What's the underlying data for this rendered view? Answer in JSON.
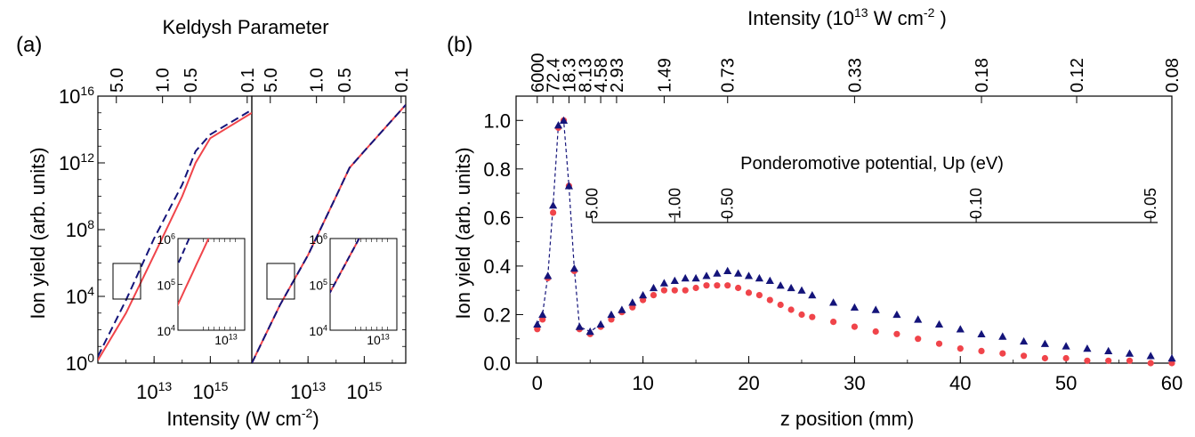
{
  "panel_a": {
    "label": "(a)",
    "top_title": "Keldysh Parameter",
    "top_ticks": [
      "5.0",
      "1.0",
      "0.5",
      "0.1"
    ],
    "ylabel": "Ion yield (arb. units)",
    "xlabel_prefix": "Intensity (",
    "xlabel_unit": "W cm",
    "xlabel_exp": "-2",
    "xlabel_suffix": ")",
    "x_tick_base": "10",
    "x_tick_exps": [
      "13",
      "15"
    ],
    "y_tick_base": "10",
    "y_tick_exps": [
      "16",
      "12",
      "8",
      "4",
      "0"
    ],
    "inset_y_exps": [
      "6",
      "5",
      "4"
    ],
    "inset_x_exp": "13"
  },
  "panel_b": {
    "label": "(b)",
    "top_title_prefix": "Intensity (10",
    "top_title_exp": "13",
    "top_title_unit": " W cm",
    "top_title_unit_exp": "-2",
    "top_title_suffix": " )",
    "top_ticks": [
      "6000",
      "72.4",
      "18.3",
      "8.13",
      "4.58",
      "2.93",
      "1.49",
      "0.73",
      "0.33",
      "0.18",
      "0.12",
      "0.08"
    ],
    "inner_title": "Ponderomotive potential, Up (eV)",
    "inner_ticks": [
      "5.00",
      "1.00",
      "0.50",
      "0.10",
      "0.05"
    ],
    "xlabel": "z position (mm)",
    "ylabel": "Ion yield (arb. units)",
    "x_ticks": [
      "0",
      "10",
      "20",
      "30",
      "40",
      "50",
      "60"
    ],
    "y_ticks": [
      "0.0",
      "0.2",
      "0.4",
      "0.6",
      "0.8",
      "1.0"
    ]
  },
  "colors": {
    "red": "#f0444a",
    "blue": "#14147a"
  },
  "chart_data": [
    {
      "type": "line",
      "panel": "(a) left",
      "xscale": "log",
      "yscale": "log",
      "xlim": [
        100000000000.0,
        3e+16
      ],
      "ylim": [
        1,
        1e+16
      ],
      "series": [
        {
          "color": "red",
          "style": "solid",
          "x": [
            100000000000.0,
            1000000000000.0,
            10000000000000.0,
            100000000000000.0,
            300000000000000.0,
            1000000000000000.0,
            3e+16
          ],
          "y": [
            1.5,
            1000.0,
            3000000.0,
            10000000000.0,
            1000000000000.0,
            30000000000000.0,
            1000000000000000.0
          ]
        },
        {
          "color": "blue",
          "style": "dashed",
          "x": [
            100000000000.0,
            1000000000000.0,
            10000000000000.0,
            100000000000000.0,
            300000000000000.0,
            1000000000000000.0,
            3e+16
          ],
          "y": [
            2.5,
            6000.0,
            30000000.0,
            50000000000.0,
            5000000000000.0,
            50000000000000.0,
            1500000000000000.0
          ]
        }
      ]
    },
    {
      "type": "line",
      "panel": "(a) right",
      "xscale": "log",
      "yscale": "log",
      "xlim": [
        100000000000.0,
        3e+16
      ],
      "ylim": [
        1,
        1e+16
      ],
      "series": [
        {
          "color": "red",
          "style": "solid",
          "x": [
            100000000000.0,
            1000000000000.0,
            10000000000000.0,
            100000000000000.0,
            300000000000000.0,
            1000000000000000.0,
            3e+16
          ],
          "y": [
            1,
            3000.0,
            3000000.0,
            10000000000.0,
            500000000000.0,
            5000000000000.0,
            3000000000000000.0
          ]
        },
        {
          "color": "blue",
          "style": "dashed",
          "x": [
            100000000000.0,
            1000000000000.0,
            10000000000000.0,
            100000000000000.0,
            300000000000000.0,
            1000000000000000.0,
            3e+16
          ],
          "y": [
            1,
            3000.0,
            3000000.0,
            10000000000.0,
            500000000000.0,
            5000000000000.0,
            3000000000000000.0
          ]
        }
      ]
    },
    {
      "type": "scatter",
      "panel": "(b)",
      "xlim": [
        -2,
        60
      ],
      "ylim": [
        0,
        1.1
      ],
      "series": [
        {
          "color": "blue",
          "marker": "triangle",
          "x": [
            0,
            0.5,
            1,
            1.5,
            2,
            2.5,
            3,
            3.5,
            4,
            5,
            6,
            7,
            8,
            9,
            10,
            11,
            12,
            13,
            14,
            15,
            16,
            17,
            18,
            19,
            20,
            21,
            22,
            23,
            24,
            25,
            26,
            28,
            30,
            32,
            34,
            36,
            38,
            40,
            42,
            44,
            46,
            48,
            50,
            52,
            54,
            56,
            58,
            60
          ],
          "y": [
            0.16,
            0.2,
            0.36,
            0.65,
            0.98,
            1.0,
            0.73,
            0.39,
            0.15,
            0.13,
            0.16,
            0.2,
            0.22,
            0.25,
            0.28,
            0.31,
            0.33,
            0.34,
            0.35,
            0.35,
            0.36,
            0.37,
            0.38,
            0.37,
            0.36,
            0.35,
            0.34,
            0.32,
            0.31,
            0.3,
            0.28,
            0.25,
            0.23,
            0.22,
            0.2,
            0.18,
            0.16,
            0.14,
            0.12,
            0.11,
            0.09,
            0.08,
            0.07,
            0.06,
            0.05,
            0.04,
            0.03,
            0.02
          ]
        },
        {
          "color": "red",
          "marker": "circle",
          "x": [
            0,
            0.5,
            1,
            1.5,
            2,
            2.5,
            3,
            3.5,
            4,
            5,
            6,
            7,
            8,
            9,
            10,
            11,
            12,
            13,
            14,
            15,
            16,
            17,
            18,
            19,
            20,
            21,
            22,
            23,
            24,
            25,
            26,
            28,
            30,
            32,
            34,
            36,
            38,
            40,
            42,
            44,
            46,
            48,
            50,
            52,
            54,
            56,
            58,
            60
          ],
          "y": [
            0.14,
            0.18,
            0.35,
            0.62,
            0.97,
            1.0,
            0.73,
            0.38,
            0.14,
            0.12,
            0.15,
            0.18,
            0.21,
            0.23,
            0.26,
            0.28,
            0.3,
            0.3,
            0.3,
            0.31,
            0.32,
            0.32,
            0.32,
            0.31,
            0.29,
            0.28,
            0.26,
            0.24,
            0.22,
            0.2,
            0.19,
            0.17,
            0.15,
            0.13,
            0.12,
            0.1,
            0.08,
            0.06,
            0.05,
            0.04,
            0.03,
            0.02,
            0.02,
            0.01,
            0.01,
            0.01,
            0.0,
            0.0
          ]
        }
      ]
    }
  ]
}
